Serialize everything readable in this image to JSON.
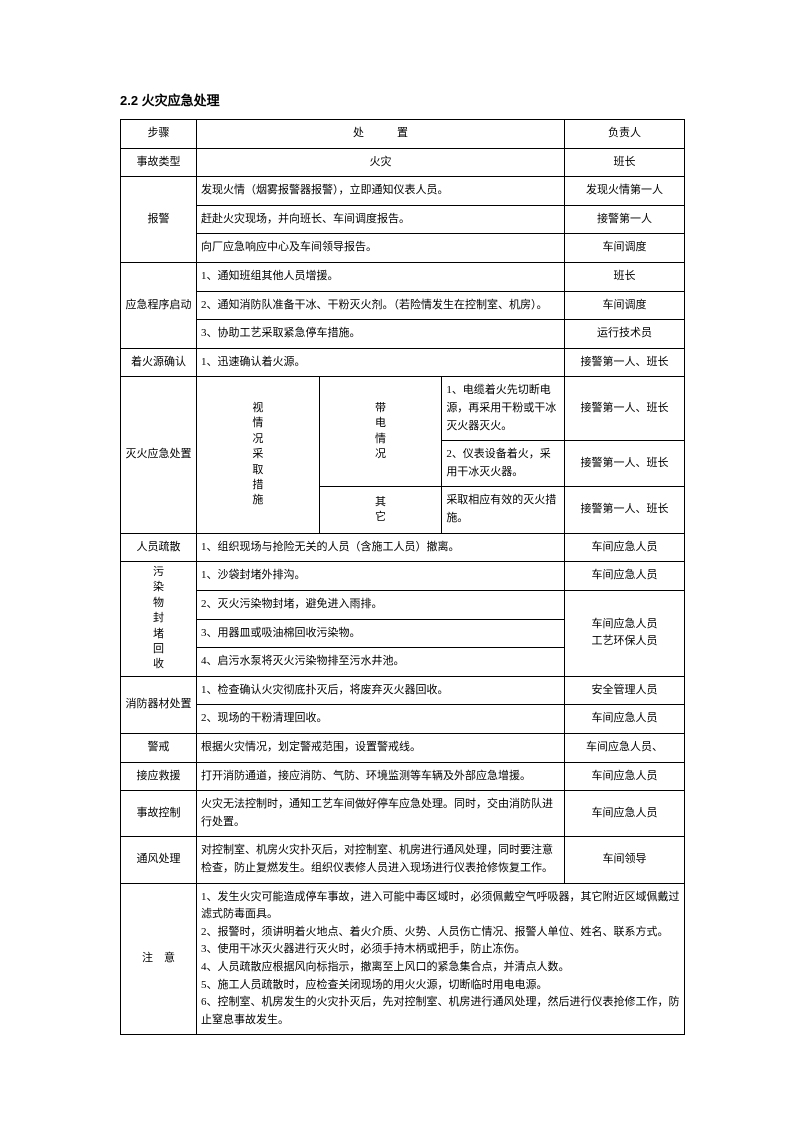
{
  "title": "2.2 火灾应急处理",
  "header": {
    "step": "步骤",
    "action": "处　　　置",
    "resp": "负责人"
  },
  "r1": {
    "a": "事故类型",
    "b": "火灾",
    "c": "班长"
  },
  "r2": {
    "a": "报警",
    "b1": "发现火情（烟雾报警器报警），立即通知仪表人员。",
    "c1": "发现火情第一人",
    "b2": "赶赴火灾现场，并向班长、车间调度报告。",
    "c2": "接警第一人",
    "b3": "向厂应急响应中心及车间领导报告。",
    "c3": "车间调度"
  },
  "r3": {
    "a": "应急程序启动",
    "b1": "1、通知班组其他人员增援。",
    "c1": "班长",
    "b2": "2、通知消防队准备干冰、干粉灭火剂。（若险情发生在控制室、机房）。",
    "c2": "车间调度",
    "b3": "3、协助工艺采取紧急停车措施。",
    "c3": "运行技术员"
  },
  "r4": {
    "a": "着火源确认",
    "b": "1、迅速确认着火源。",
    "c": "接警第一人、班长"
  },
  "r5": {
    "a": "灭火应急处置",
    "sub1": "视情况采取措施",
    "sub2a": "带电情况",
    "sub2b": "其它",
    "b1": "1、电缆着火先切断电源，再采用干粉或干冰灭火器灭火。",
    "c1": "接警第一人、班长",
    "b2": "2、仪表设备着火，采用干冰灭火器。",
    "c2": "接警第一人、班长",
    "b3": "采取相应有效的灭火措施。",
    "c3": "接警第一人、班长"
  },
  "r6": {
    "a": "人员疏散",
    "b": "1、组织现场与抢险无关的人员（含施工人员）撤离。",
    "c": "车间应急人员"
  },
  "r7": {
    "a": "污染物封堵回收",
    "b1": "1、沙袋封堵外排沟。",
    "c1": "车间应急人员",
    "b2": "2、灭火污染物封堵，避免进入雨排。",
    "b3": "3、用器皿或吸油棉回收污染物。",
    "c23": "车间应急人员\n工艺环保人员",
    "b4": "4、启污水泵将灭火污染物排至污水井池。"
  },
  "r8": {
    "a": "消防器材处置",
    "b1": "1、检查确认火灾彻底扑灭后，将废弃灭火器回收。",
    "c1": "安全管理人员",
    "b2": "2、现场的干粉清理回收。",
    "c2": "车间应急人员"
  },
  "r9": {
    "a": "警戒",
    "b": "根据火灾情况，划定警戒范围，设置警戒线。",
    "c": "车间应急人员、"
  },
  "r10": {
    "a": "接应救援",
    "b": "打开消防通道，接应消防、气防、环境监测等车辆及外部应急增援。",
    "c": "车间应急人员"
  },
  "r11": {
    "a": "事故控制",
    "b": "火灾无法控制时，通知工艺车间做好停车应急处理。同时，交由消防队进行处置。",
    "c": "车间应急人员"
  },
  "r12": {
    "a": "通风处理",
    "b": "对控制室、机房火灾扑灭后，对控制室、机房进行通风处理，同时要注意检查，防止复燃发生。组织仪表修人员进入现场进行仪表抢修恢复工作。",
    "c": "车间领导"
  },
  "r13": {
    "a": "注　意",
    "b": "1、发生火灾可能造成停车事故，进入可能中毒区域时，必须佩戴空气呼吸器，其它附近区域佩戴过滤式防毒面具。\n2、报警时，须讲明着火地点、着火介质、火势、人员伤亡情况、报警人单位、姓名、联系方式。\n3、使用干冰灭火器进行灭火时，必须手持木柄或把手，防止冻伤。\n4、人员疏散应根据风向标指示，撤离至上风口的紧急集合点，并清点人数。\n5、施工人员疏散时，应检查关闭现场的用火火源，切断临时用电电源。\n6、控制室、机房发生的火灾扑灭后，先对控制室、机房进行通风处理，然后进行仪表抢修工作，防止窒息事故发生。"
  }
}
